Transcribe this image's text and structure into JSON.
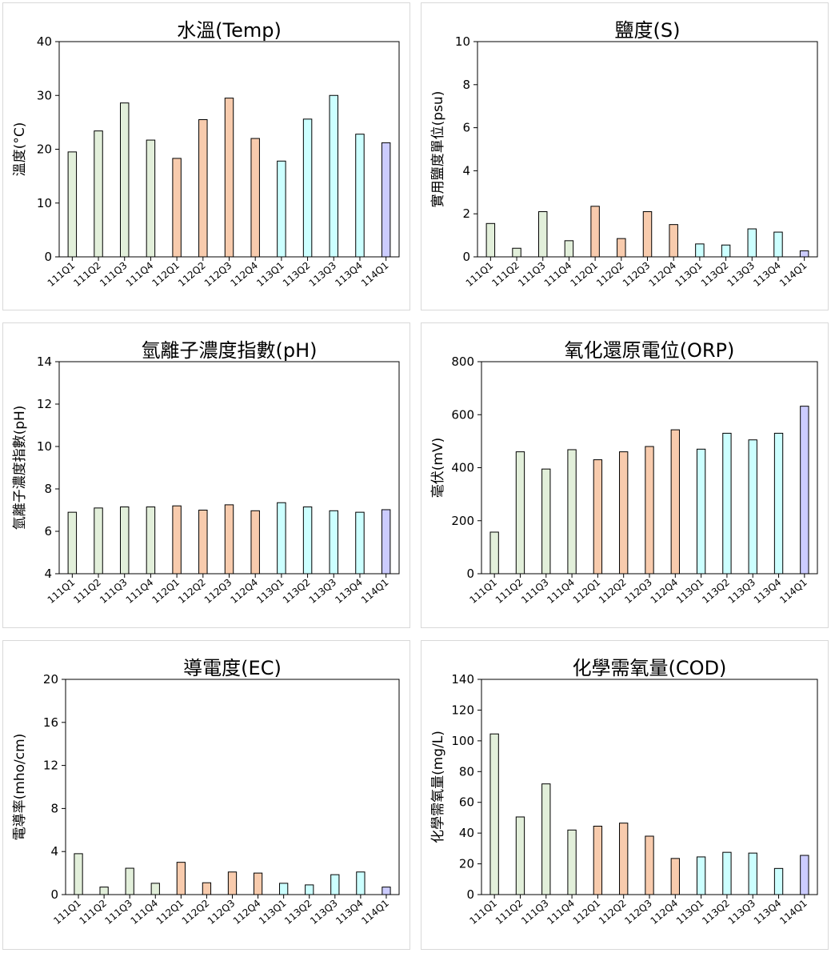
{
  "chart_data": [
    {
      "type": "bar",
      "title": "水溫(Temp)",
      "ylabel": "溫度(°C)",
      "xlabel": "",
      "ylim": [
        0,
        40
      ],
      "yticks": [
        0,
        10,
        20,
        30,
        40
      ],
      "categories": [
        "111Q1",
        "111Q2",
        "111Q3",
        "111Q4",
        "112Q1",
        "112Q2",
        "112Q3",
        "112Q4",
        "113Q1",
        "113Q2",
        "113Q3",
        "113Q4",
        "114Q1"
      ],
      "values": [
        19.5,
        23.4,
        28.6,
        21.7,
        18.3,
        25.5,
        29.5,
        22.0,
        17.8,
        25.6,
        30.0,
        22.8,
        21.2
      ],
      "colors": [
        "#e2efda",
        "#e2efda",
        "#e2efda",
        "#e2efda",
        "#f8cbad",
        "#f8cbad",
        "#f8cbad",
        "#f8cbad",
        "#ccffff",
        "#ccffff",
        "#ccffff",
        "#ccffff",
        "#ccccff"
      ],
      "grid": false
    },
    {
      "type": "bar",
      "title": "鹽度(S)",
      "ylabel": "實用鹽度單位(psu)",
      "xlabel": "",
      "ylim": [
        0,
        10
      ],
      "yticks": [
        0,
        2,
        4,
        6,
        8,
        10
      ],
      "categories": [
        "111Q1",
        "111Q2",
        "111Q3",
        "111Q4",
        "112Q1",
        "112Q2",
        "112Q3",
        "112Q4",
        "113Q1",
        "113Q2",
        "113Q3",
        "113Q4",
        "114Q1"
      ],
      "values": [
        1.55,
        0.4,
        2.1,
        0.75,
        2.35,
        0.85,
        2.1,
        1.5,
        0.6,
        0.55,
        1.3,
        1.15,
        0.28
      ],
      "colors": [
        "#e2efda",
        "#e2efda",
        "#e2efda",
        "#e2efda",
        "#f8cbad",
        "#f8cbad",
        "#f8cbad",
        "#f8cbad",
        "#ccffff",
        "#ccffff",
        "#ccffff",
        "#ccffff",
        "#ccccff"
      ],
      "grid": false
    },
    {
      "type": "bar",
      "title": "氫離子濃度指數(pH)",
      "ylabel": "氫離子濃度指數(pH)",
      "xlabel": "",
      "ylim": [
        4,
        14
      ],
      "yticks": [
        4,
        6,
        8,
        10,
        12,
        14
      ],
      "categories": [
        "111Q1",
        "111Q2",
        "111Q3",
        "111Q4",
        "112Q1",
        "112Q2",
        "112Q3",
        "112Q4",
        "113Q1",
        "113Q2",
        "113Q3",
        "113Q4",
        "114Q1"
      ],
      "values": [
        6.9,
        7.1,
        7.15,
        7.15,
        7.2,
        7.0,
        7.25,
        6.97,
        7.35,
        7.15,
        6.97,
        6.9,
        7.02
      ],
      "colors": [
        "#e2efda",
        "#e2efda",
        "#e2efda",
        "#e2efda",
        "#f8cbad",
        "#f8cbad",
        "#f8cbad",
        "#f8cbad",
        "#ccffff",
        "#ccffff",
        "#ccffff",
        "#ccffff",
        "#ccccff"
      ],
      "grid": false
    },
    {
      "type": "bar",
      "title": "氧化還原電位(ORP)",
      "ylabel": "毫伏(mV)",
      "xlabel": "",
      "ylim": [
        0,
        800
      ],
      "yticks": [
        0,
        200,
        400,
        600,
        800
      ],
      "categories": [
        "111Q1",
        "111Q2",
        "111Q3",
        "111Q4",
        "112Q1",
        "112Q2",
        "112Q3",
        "112Q4",
        "113Q1",
        "113Q2",
        "113Q3",
        "113Q4",
        "114Q1"
      ],
      "values": [
        157,
        460,
        395,
        468,
        430,
        460,
        480,
        543,
        470,
        530,
        505,
        530,
        632
      ],
      "colors": [
        "#e2efda",
        "#e2efda",
        "#e2efda",
        "#e2efda",
        "#f8cbad",
        "#f8cbad",
        "#f8cbad",
        "#f8cbad",
        "#ccffff",
        "#ccffff",
        "#ccffff",
        "#ccffff",
        "#ccccff"
      ],
      "grid": false
    },
    {
      "type": "bar",
      "title": "導電度(EC)",
      "ylabel": "電導率(mho/cm)",
      "xlabel": "",
      "ylim": [
        0,
        20
      ],
      "yticks": [
        0,
        4,
        8,
        12,
        16,
        20
      ],
      "categories": [
        "111Q1",
        "111Q2",
        "111Q3",
        "111Q4",
        "112Q1",
        "112Q2",
        "112Q3",
        "112Q4",
        "113Q1",
        "113Q2",
        "113Q3",
        "113Q4",
        "114Q1"
      ],
      "values": [
        3.8,
        0.7,
        2.45,
        1.05,
        3.0,
        1.1,
        2.1,
        2.0,
        1.05,
        0.9,
        1.85,
        2.1,
        0.7
      ],
      "colors": [
        "#e2efda",
        "#e2efda",
        "#e2efda",
        "#e2efda",
        "#f8cbad",
        "#f8cbad",
        "#f8cbad",
        "#f8cbad",
        "#ccffff",
        "#ccffff",
        "#ccffff",
        "#ccffff",
        "#ccccff"
      ],
      "grid": false
    },
    {
      "type": "bar",
      "title": "化學需氧量(COD)",
      "ylabel": "化學需氧量(mg/L)",
      "xlabel": "",
      "ylim": [
        0,
        140
      ],
      "yticks": [
        0,
        20,
        40,
        60,
        80,
        100,
        120,
        140
      ],
      "categories": [
        "111Q1",
        "111Q2",
        "111Q3",
        "111Q4",
        "112Q1",
        "112Q2",
        "112Q3",
        "112Q4",
        "113Q1",
        "113Q2",
        "113Q3",
        "113Q4",
        "114Q1"
      ],
      "values": [
        104.5,
        50.5,
        72,
        42,
        44.5,
        46.5,
        38,
        23.5,
        24.5,
        27.5,
        27,
        17,
        25.5
      ],
      "colors": [
        "#e2efda",
        "#e2efda",
        "#e2efda",
        "#e2efda",
        "#f8cbad",
        "#f8cbad",
        "#f8cbad",
        "#f8cbad",
        "#ccffff",
        "#ccffff",
        "#ccffff",
        "#ccffff",
        "#ccccff"
      ],
      "grid": false
    }
  ]
}
